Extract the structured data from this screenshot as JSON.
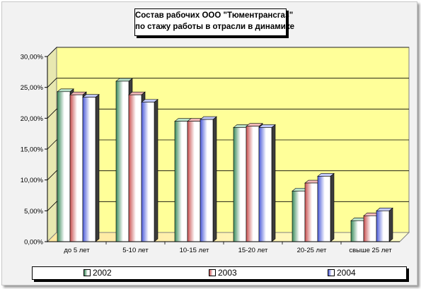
{
  "chart_data": {
    "type": "bar",
    "title_lines": [
      "Состав рабочих ООО \"Тюментрансгаз\"",
      "по стажу работы в отрасли в динамике"
    ],
    "categories": [
      "до 5 лет",
      "5-10 лет",
      "10-15 лет",
      "15-20 лет",
      "20-25 лет",
      "свыше 25 лет"
    ],
    "series": [
      {
        "name": "2002",
        "values": [
          24.3,
          26.0,
          19.5,
          18.5,
          8.2,
          3.4
        ],
        "color": "#4a9a6a"
      },
      {
        "name": "2003",
        "values": [
          23.8,
          23.8,
          19.5,
          18.7,
          9.5,
          4.2
        ],
        "color": "#d06a6a"
      },
      {
        "name": "2004",
        "values": [
          23.4,
          22.6,
          19.8,
          18.5,
          10.6,
          5.0
        ],
        "color": "#5a6ad8"
      }
    ],
    "y_ticks": [
      "0,00%",
      "5,00%",
      "10,00%",
      "15,00%",
      "20,00%",
      "25,00%",
      "30,00%"
    ],
    "ylim": [
      0,
      30
    ],
    "grid": true,
    "legend_position": "bottom",
    "wall_color": "#ffff99"
  }
}
